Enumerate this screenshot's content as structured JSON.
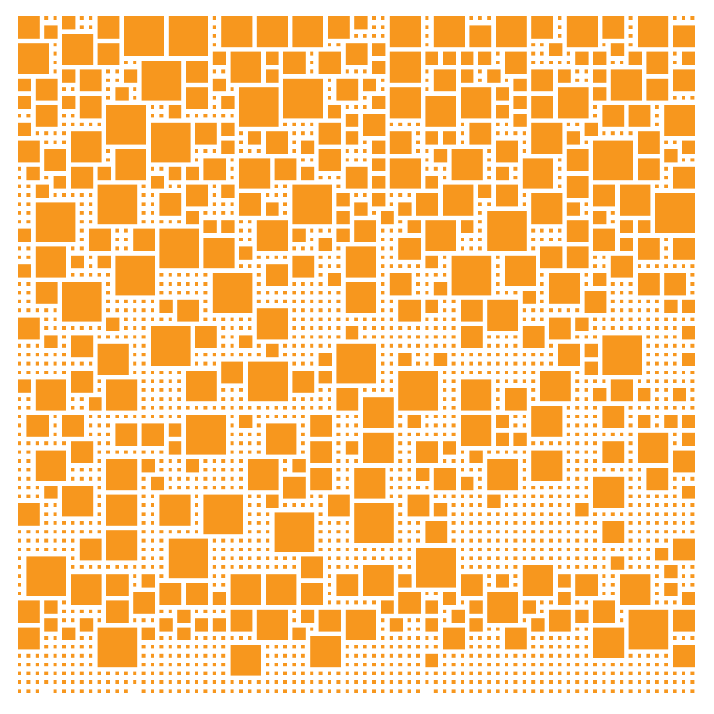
{
  "artwork": {
    "fill_color": "#f7971e",
    "background_color": "#ffffff"
  }
}
